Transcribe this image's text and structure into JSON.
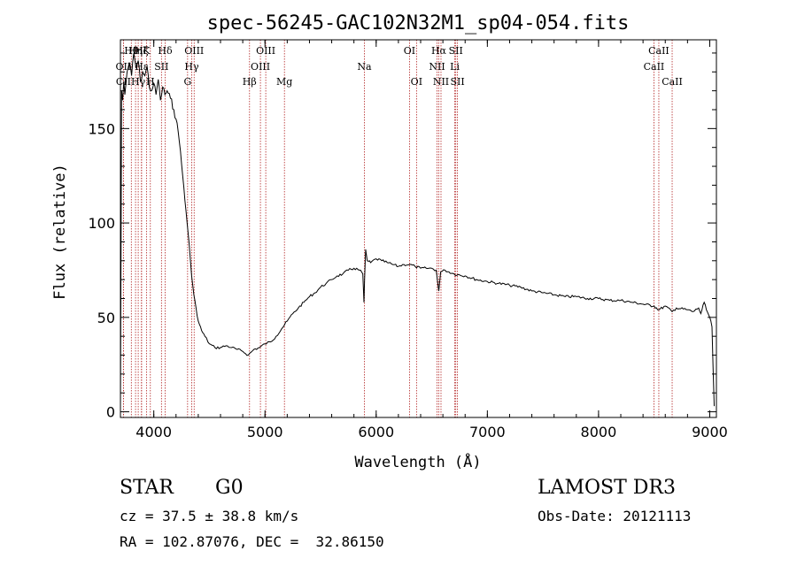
{
  "chart_data": {
    "type": "line",
    "title": "spec-56245-GAC102N32M1_sp04-054.fits",
    "xlabel": "Wavelength (Å)",
    "ylabel": "Flux (relative)",
    "xlim": [
      3700,
      9060
    ],
    "ylim": [
      -3,
      197
    ],
    "x_ticks": [
      4000,
      5000,
      6000,
      7000,
      8000,
      9000
    ],
    "y_ticks": [
      0,
      50,
      100,
      150
    ],
    "grid": false,
    "line_color": "#000000",
    "marker_color": "#b22222",
    "series": [
      {
        "name": "flux",
        "x": [
          3700,
          3710,
          3720,
          3730,
          3740,
          3760,
          3780,
          3800,
          3820,
          3840,
          3860,
          3880,
          3900,
          3920,
          3940,
          3960,
          3980,
          4000,
          4020,
          4040,
          4060,
          4080,
          4100,
          4120,
          4150,
          4180,
          4200,
          4220,
          4240,
          4260,
          4280,
          4300,
          4320,
          4340,
          4360,
          4380,
          4400,
          4430,
          4460,
          4500,
          4550,
          4600,
          4650,
          4700,
          4750,
          4800,
          4850,
          4900,
          4950,
          5000,
          5050,
          5100,
          5150,
          5200,
          5250,
          5300,
          5350,
          5400,
          5450,
          5500,
          5550,
          5600,
          5650,
          5700,
          5750,
          5800,
          5850,
          5880,
          5890,
          5896,
          5905,
          5920,
          5950,
          6000,
          6050,
          6100,
          6150,
          6200,
          6250,
          6300,
          6350,
          6400,
          6450,
          6500,
          6540,
          6563,
          6580,
          6620,
          6700,
          6800,
          6900,
          7000,
          7100,
          7200,
          7300,
          7400,
          7500,
          7600,
          7700,
          7800,
          7900,
          8000,
          8100,
          8200,
          8300,
          8400,
          8500,
          8542,
          8600,
          8662,
          8700,
          8800,
          8850,
          8900,
          8920,
          8950,
          8970,
          9000,
          9020,
          9040
        ],
        "y": [
          2,
          170,
          165,
          175,
          168,
          180,
          185,
          178,
          190,
          182,
          186,
          175,
          180,
          178,
          183,
          172,
          170,
          174,
          168,
          176,
          165,
          172,
          168,
          170,
          166,
          160,
          155,
          148,
          138,
          125,
          112,
          100,
          88,
          72,
          62,
          55,
          48,
          43,
          40,
          36,
          34,
          34,
          35,
          34,
          33,
          32,
          30,
          33,
          34,
          36,
          37,
          40,
          44,
          48,
          52,
          55,
          58,
          61,
          63,
          66,
          68,
          70,
          72,
          73,
          75,
          76,
          75,
          73,
          58,
          70,
          86,
          80,
          79,
          81,
          80,
          79,
          78,
          77,
          78,
          78,
          77,
          76,
          76,
          76,
          75,
          64,
          74,
          75,
          73,
          72,
          70,
          69,
          68,
          67,
          66,
          64,
          63,
          62,
          61,
          61,
          60,
          60,
          59,
          59,
          58,
          57,
          56,
          54,
          56,
          53,
          55,
          54,
          53,
          55,
          52,
          58,
          54,
          50,
          45,
          3
        ]
      }
    ],
    "line_markers": [
      {
        "label": "OII",
        "wavelength": 3727,
        "row": 2
      },
      {
        "label": "CII",
        "wavelength": 3727,
        "row": 3
      },
      {
        "label": "Hθ",
        "wavelength": 3798,
        "row": 1
      },
      {
        "label": "Hη",
        "wavelength": 3836,
        "row": 1
      },
      {
        "label": "Hε",
        "wavelength": 3890,
        "row": 2
      },
      {
        "label": "Hζ",
        "wavelength": 3889,
        "row": 1
      },
      {
        "label": "Hγ",
        "wavelength": 3860,
        "row": 3
      },
      {
        "label": "K",
        "wavelength": 3934,
        "row": 1
      },
      {
        "label": "H",
        "wavelength": 3969,
        "row": 3
      },
      {
        "label": "SII",
        "wavelength": 4069,
        "row": 2
      },
      {
        "label": "Hδ",
        "wavelength": 4102,
        "row": 1
      },
      {
        "label": "G",
        "wavelength": 4304,
        "row": 3
      },
      {
        "label": "Hγ",
        "wavelength": 4341,
        "row": 2
      },
      {
        "label": "OIII",
        "wavelength": 4363,
        "row": 1
      },
      {
        "label": "Hβ",
        "wavelength": 4861,
        "row": 3
      },
      {
        "label": "OIII",
        "wavelength": 4959,
        "row": 2
      },
      {
        "label": "OIII",
        "wavelength": 5007,
        "row": 1
      },
      {
        "label": "Mg",
        "wavelength": 5175,
        "row": 3
      },
      {
        "label": "Na",
        "wavelength": 5894,
        "row": 2
      },
      {
        "label": "OI",
        "wavelength": 6300,
        "row": 1
      },
      {
        "label": "OI",
        "wavelength": 6363,
        "row": 3
      },
      {
        "label": "NII",
        "wavelength": 6548,
        "row": 2
      },
      {
        "label": "Hα",
        "wavelength": 6563,
        "row": 1
      },
      {
        "label": "NII",
        "wavelength": 6583,
        "row": 3
      },
      {
        "label": "Li",
        "wavelength": 6707,
        "row": 2
      },
      {
        "label": "SII",
        "wavelength": 6716,
        "row": 1
      },
      {
        "label": "SII",
        "wavelength": 6731,
        "row": 3
      },
      {
        "label": "CaII",
        "wavelength": 8498,
        "row": 2
      },
      {
        "label": "CaII",
        "wavelength": 8542,
        "row": 1
      },
      {
        "label": "CaII",
        "wavelength": 8662,
        "row": 3
      }
    ]
  },
  "info": {
    "object_class": "STAR",
    "subclass": "G0",
    "survey": "LAMOST DR3",
    "redshift_text": "cz = 37.5 ± 38.8 km/s",
    "obs_date_text": "Obs-Date: 20121113",
    "coords_text": "RA = 102.87076, DEC =  32.86150"
  }
}
